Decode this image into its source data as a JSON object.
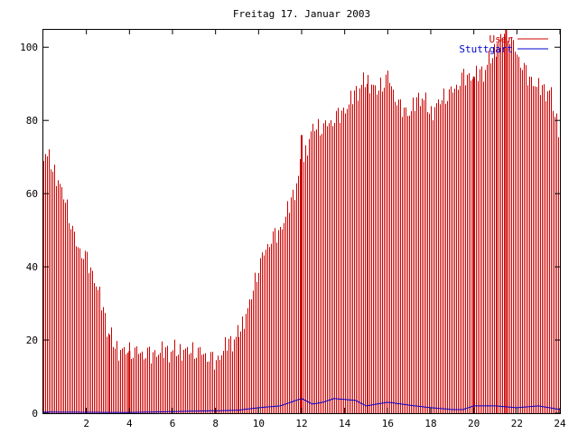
{
  "chart_data": {
    "type": "bar",
    "title": "Freitag 17. Januar 2003",
    "xlabel": "",
    "ylabel": "",
    "xlim": [
      0,
      24
    ],
    "ylim": [
      0,
      105
    ],
    "x_ticks": [
      {
        "value": 2,
        "label": "2"
      },
      {
        "value": 4,
        "label": "4"
      },
      {
        "value": 6,
        "label": "6"
      },
      {
        "value": 8,
        "label": "8"
      },
      {
        "value": 10,
        "label": "10"
      },
      {
        "value": 12,
        "label": "12"
      },
      {
        "value": 14,
        "label": "14"
      },
      {
        "value": 16,
        "label": "16"
      },
      {
        "value": 18,
        "label": "18"
      },
      {
        "value": 20,
        "label": "20"
      },
      {
        "value": 22,
        "label": "22"
      },
      {
        "value": 24,
        "label": "24"
      }
    ],
    "y_ticks": [
      {
        "value": 0,
        "label": "0"
      },
      {
        "value": 20,
        "label": "20"
      },
      {
        "value": 40,
        "label": "40"
      },
      {
        "value": 60,
        "label": "60"
      },
      {
        "value": 80,
        "label": "80"
      },
      {
        "value": 100,
        "label": "100"
      }
    ],
    "grid": false,
    "legend_position": "top-right",
    "anchors": {
      "users": [
        [
          0,
          72
        ],
        [
          0.5,
          66
        ],
        [
          1,
          58
        ],
        [
          1.5,
          46
        ],
        [
          2,
          42
        ],
        [
          2.5,
          34
        ],
        [
          3,
          22
        ],
        [
          3.5,
          17
        ],
        [
          4,
          17
        ],
        [
          5,
          16
        ],
        [
          5.5,
          17
        ],
        [
          6,
          17
        ],
        [
          7,
          17
        ],
        [
          7.5,
          16
        ],
        [
          8,
          14
        ],
        [
          8.5,
          19
        ],
        [
          9,
          21
        ],
        [
          9.5,
          28
        ],
        [
          10,
          40
        ],
        [
          10.5,
          47
        ],
        [
          11,
          50
        ],
        [
          11.5,
          58
        ],
        [
          12,
          68
        ],
        [
          12.5,
          78
        ],
        [
          13,
          78
        ],
        [
          14,
          83
        ],
        [
          14.5,
          88
        ],
        [
          15,
          91
        ],
        [
          15.5,
          88
        ],
        [
          16,
          92
        ],
        [
          16.5,
          84
        ],
        [
          17,
          82
        ],
        [
          17.5,
          87
        ],
        [
          18,
          82
        ],
        [
          18.5,
          86
        ],
        [
          19,
          88
        ],
        [
          19.5,
          92
        ],
        [
          20,
          92
        ],
        [
          20.5,
          94
        ],
        [
          21,
          100
        ],
        [
          21.5,
          105
        ],
        [
          22,
          98
        ],
        [
          22.5,
          92
        ],
        [
          23,
          89
        ],
        [
          23.5,
          88
        ],
        [
          24,
          76
        ]
      ],
      "stuttgart": [
        [
          0,
          0.3
        ],
        [
          4,
          0.2
        ],
        [
          9,
          0.8
        ],
        [
          10,
          1.5
        ],
        [
          11,
          2
        ],
        [
          12,
          4
        ],
        [
          12.5,
          2.5
        ],
        [
          13,
          3
        ],
        [
          13.5,
          4
        ],
        [
          14.5,
          3.5
        ],
        [
          15,
          2
        ],
        [
          16,
          3
        ],
        [
          17,
          2.2
        ],
        [
          18,
          1.5
        ],
        [
          19,
          1
        ],
        [
          19.5,
          1
        ],
        [
          20,
          2
        ],
        [
          21,
          2
        ],
        [
          22,
          1.5
        ],
        [
          23,
          2
        ],
        [
          24,
          1
        ]
      ]
    },
    "spikes": [
      {
        "x": 4,
        "y": 17
      },
      {
        "x": 12,
        "y": 76
      },
      {
        "x": 20,
        "y": 92
      },
      {
        "x": 21.5,
        "y": 105
      }
    ],
    "series": [
      {
        "name": "User",
        "color": "#cc0000",
        "mark": "bar"
      },
      {
        "name": "Stuttgart",
        "color": "#0000cc",
        "mark": "line"
      }
    ]
  }
}
